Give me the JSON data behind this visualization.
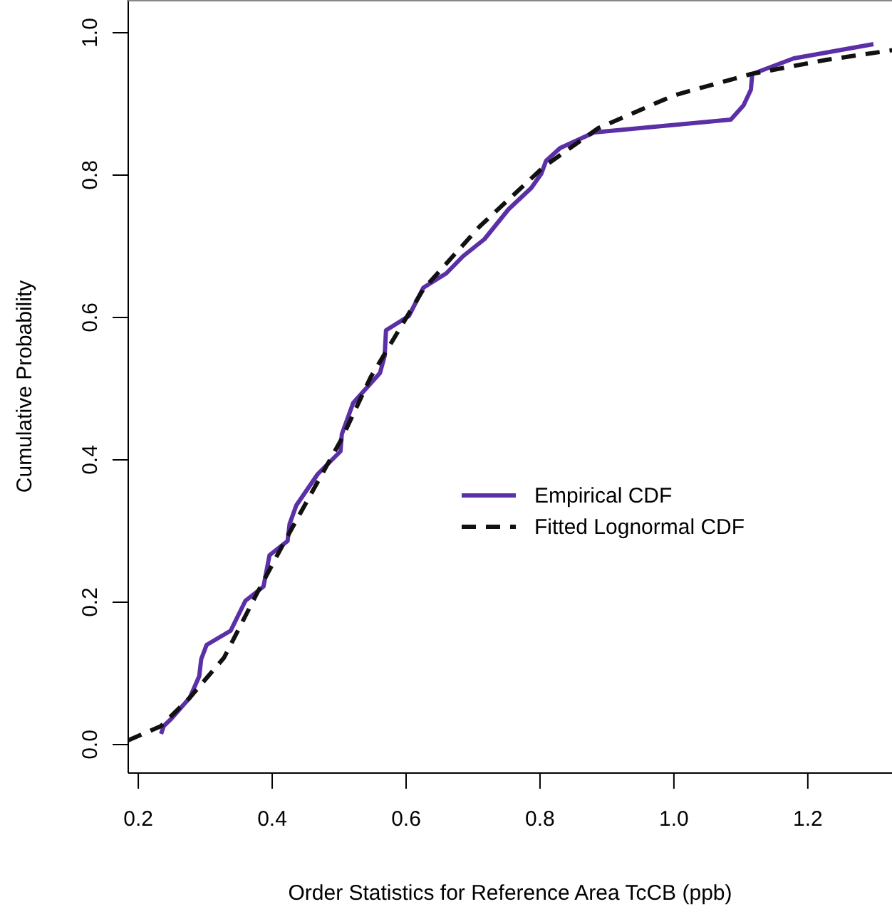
{
  "chart_data": {
    "type": "line",
    "xlabel": "Order Statistics for Reference Area TcCB (ppb)",
    "ylabel": "Cumulative Probability",
    "xlim": [
      0.185,
      1.33
    ],
    "ylim": [
      -0.04,
      1.046
    ],
    "xticks": [
      0.2,
      0.4,
      0.6,
      0.8,
      {
        "value": 1,
        "label": "1.0"
      },
      1.2
    ],
    "yticks": [
      {
        "value": 0,
        "label": "0.0"
      },
      0.2,
      0.4,
      0.6,
      0.8,
      {
        "value": 1,
        "label": "1.0"
      }
    ],
    "legend": "right",
    "grid": false,
    "series": [
      {
        "name": "Empirical CDF",
        "color": "#5b2fa6",
        "line_style": "solid",
        "x": [
          0.234,
          0.238,
          0.249,
          0.277,
          0.291,
          0.294,
          0.302,
          0.338,
          0.36,
          0.387,
          0.396,
          0.423,
          0.426,
          0.436,
          0.468,
          0.502,
          0.504,
          0.521,
          0.561,
          0.568,
          0.57,
          0.604,
          0.626,
          0.66,
          0.685,
          0.717,
          0.753,
          0.787,
          0.802,
          0.809,
          0.83,
          0.881,
          1.085,
          1.104,
          1.115,
          1.117,
          1.179,
          1.298
        ],
        "values": [
          0.015,
          0.026,
          0.036,
          0.066,
          0.096,
          0.12,
          0.14,
          0.16,
          0.202,
          0.222,
          0.266,
          0.286,
          0.31,
          0.336,
          0.38,
          0.412,
          0.436,
          0.48,
          0.522,
          0.546,
          0.582,
          0.602,
          0.642,
          0.662,
          0.686,
          0.71,
          0.752,
          0.782,
          0.802,
          0.82,
          0.838,
          0.86,
          0.878,
          0.898,
          0.92,
          0.942,
          0.964,
          0.984
        ]
      },
      {
        "name": "Fitted Lognormal CDF",
        "color": "#111111",
        "line_style": "dashed",
        "x": [
          0.185,
          0.234,
          0.277,
          0.328,
          0.377,
          0.419,
          0.504,
          0.547,
          0.626,
          0.71,
          0.806,
          0.887,
          1.0,
          1.115,
          1.228,
          1.33
        ],
        "values": [
          0.006,
          0.026,
          0.066,
          0.122,
          0.212,
          0.286,
          0.43,
          0.516,
          0.64,
          0.728,
          0.812,
          0.866,
          0.912,
          0.942,
          0.962,
          0.976
        ]
      }
    ]
  }
}
